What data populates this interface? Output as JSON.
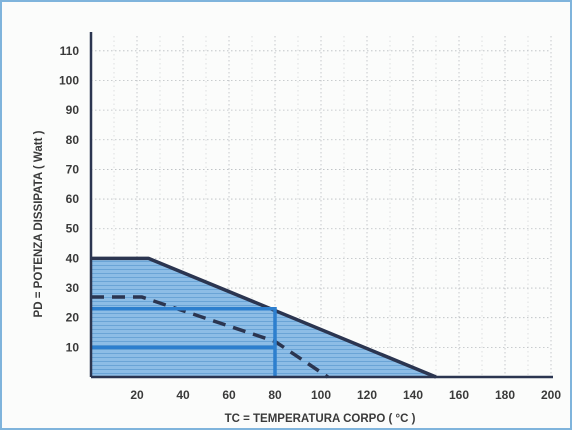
{
  "chart_data": {
    "type": "area",
    "xlabel": "TC = TEMPERATURA CORPO ( °C )",
    "ylabel": "PD = POTENZA DISSIPATA  ( Watt )",
    "xlim": [
      0,
      200
    ],
    "ylim": [
      0,
      115
    ],
    "x_ticks": [
      20,
      40,
      60,
      80,
      100,
      120,
      140,
      160,
      180,
      200
    ],
    "y_ticks": [
      10,
      20,
      30,
      40,
      50,
      60,
      70,
      80,
      90,
      100,
      110
    ],
    "grid": true,
    "series": [
      {
        "style": "solid",
        "color": "#2b3550",
        "fill": "#7fb6e4",
        "points": [
          [
            0,
            40
          ],
          [
            25,
            40
          ],
          [
            150,
            0
          ]
        ]
      },
      {
        "style": "dashed",
        "color": "#2b3550",
        "points": [
          [
            0,
            27
          ],
          [
            22,
            27
          ],
          [
            80,
            12
          ],
          [
            103,
            0
          ]
        ]
      }
    ],
    "guides": [
      {
        "color": "#2d7fce",
        "points": [
          [
            0,
            23
          ],
          [
            80,
            23
          ],
          [
            80,
            0
          ]
        ]
      },
      {
        "color": "#2d7fce",
        "points": [
          [
            0,
            10
          ],
          [
            80,
            10
          ]
        ]
      }
    ]
  }
}
